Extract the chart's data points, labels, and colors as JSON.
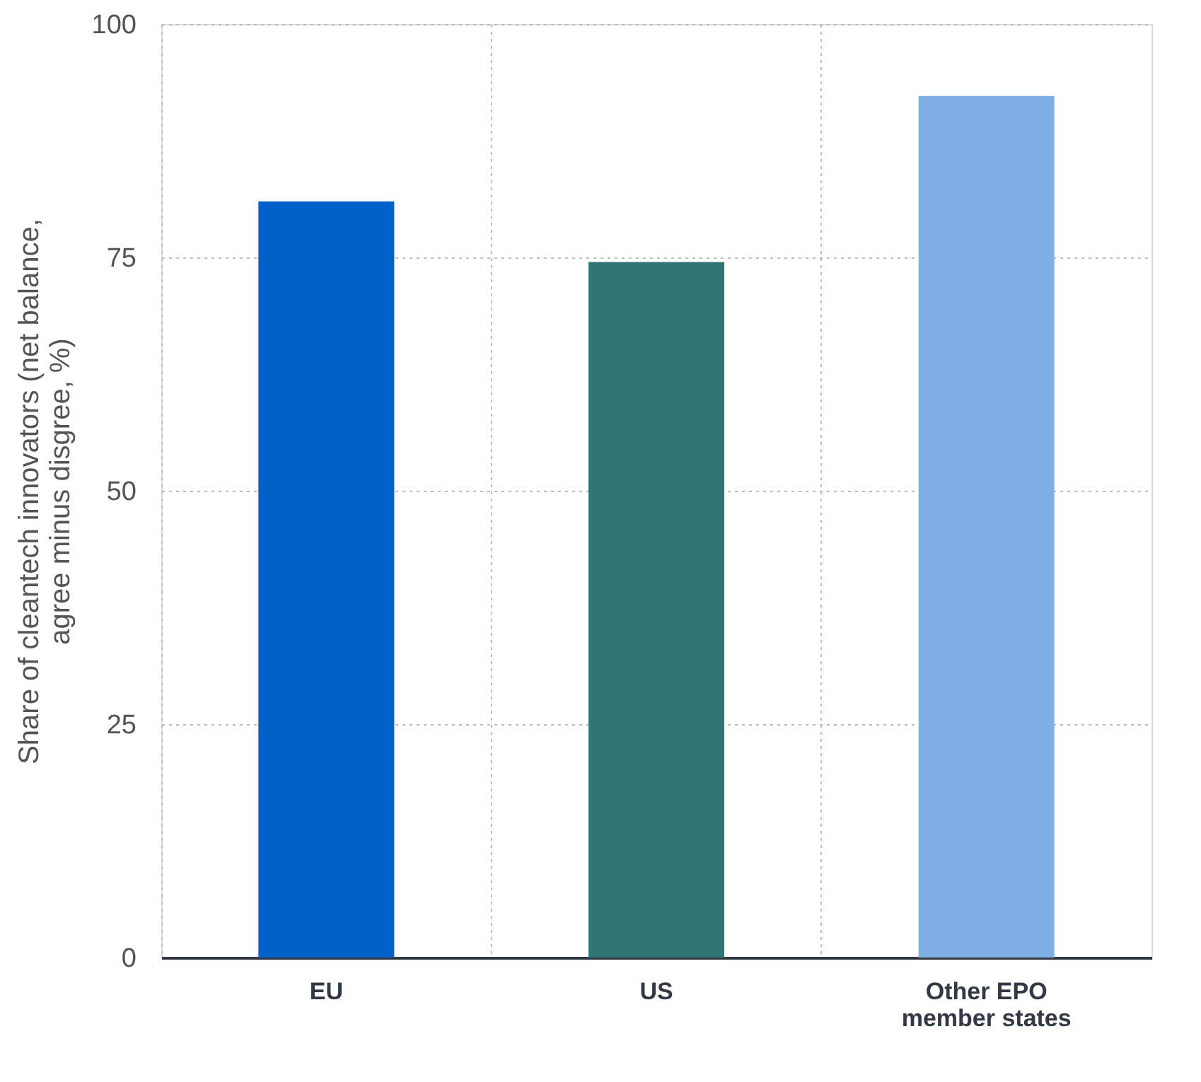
{
  "chart_data": {
    "type": "bar",
    "ylabel": "Share of cleantech innovators (net balance,\nagree minus disgree, %)",
    "categories": [
      "EU",
      "US",
      "Other EPO\nmember states"
    ],
    "values": [
      81,
      74.5,
      92.3
    ],
    "colors": [
      "#0061c8",
      "#317674",
      "#7fafe2"
    ],
    "ylim": [
      0,
      100
    ],
    "yticks": [
      0,
      25,
      50,
      75,
      100
    ],
    "grid": true
  }
}
